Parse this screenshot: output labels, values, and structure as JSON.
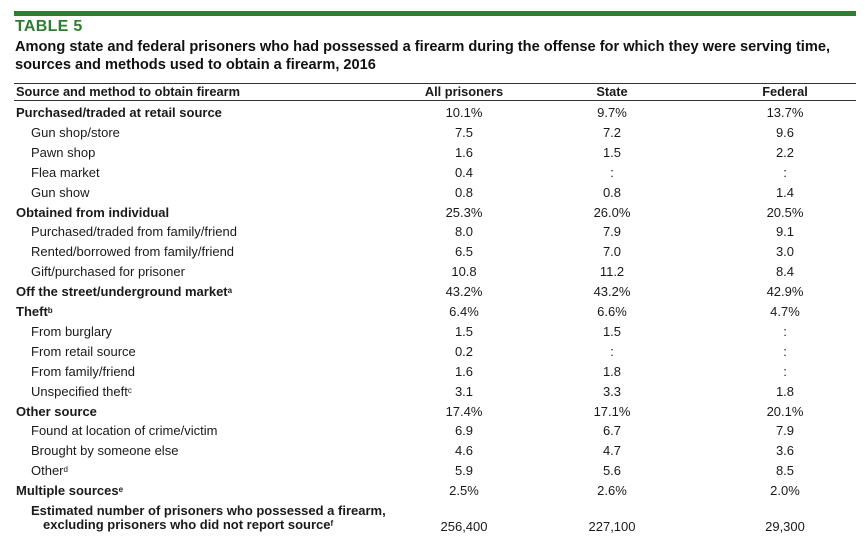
{
  "table_label": "TABLE 5",
  "title": "Among state and federal prisoners who had possessed a firearm during the offense for which they were serving time, sources and methods used to obtain a firearm, 2016",
  "header": {
    "label": "Source and method to obtain firearm",
    "col1": "All prisoners",
    "col2": "State",
    "col3": "Federal"
  },
  "colors": {
    "accent": "#2e7d32"
  },
  "rows": [
    {
      "label": "Purchased/traded at retail source",
      "sup": "",
      "level": 0,
      "all": "10.1%",
      "state": "9.7%",
      "federal": "13.7%"
    },
    {
      "label": "Gun shop/store",
      "sup": "",
      "level": 1,
      "all": "7.5",
      "state": "7.2",
      "federal": "9.6"
    },
    {
      "label": "Pawn shop",
      "sup": "",
      "level": 1,
      "all": "1.6",
      "state": "1.5",
      "federal": "2.2"
    },
    {
      "label": "Flea market",
      "sup": "",
      "level": 1,
      "all": "0.4",
      "state": ":",
      "federal": ":"
    },
    {
      "label": "Gun show",
      "sup": "",
      "level": 1,
      "all": "0.8",
      "state": "0.8",
      "federal": "1.4"
    },
    {
      "label": "Obtained from individual",
      "sup": "",
      "level": 0,
      "all": "25.3%",
      "state": "26.0%",
      "federal": "20.5%"
    },
    {
      "label": "Purchased/traded from family/friend",
      "sup": "",
      "level": 1,
      "all": "8.0",
      "state": "7.9",
      "federal": "9.1"
    },
    {
      "label": "Rented/borrowed from family/friend",
      "sup": "",
      "level": 1,
      "all": "6.5",
      "state": "7.0",
      "federal": "3.0"
    },
    {
      "label": "Gift/purchased for prisoner",
      "sup": "",
      "level": 1,
      "all": "10.8",
      "state": "11.2",
      "federal": "8.4"
    },
    {
      "label": "Off the street/underground market",
      "sup": "a",
      "level": 0,
      "all": "43.2%",
      "state": "43.2%",
      "federal": "42.9%"
    },
    {
      "label": "Theft",
      "sup": "b",
      "level": 0,
      "all": "6.4%",
      "state": "6.6%",
      "federal": "4.7%"
    },
    {
      "label": "From burglary",
      "sup": "",
      "level": 1,
      "all": "1.5",
      "state": "1.5",
      "federal": ":"
    },
    {
      "label": "From retail source",
      "sup": "",
      "level": 1,
      "all": "0.2",
      "state": ":",
      "federal": ":"
    },
    {
      "label": "From family/friend",
      "sup": "",
      "level": 1,
      "all": "1.6",
      "state": "1.8",
      "federal": ":"
    },
    {
      "label": "Unspecified theft",
      "sup": "c",
      "level": 1,
      "all": "3.1",
      "state": "3.3",
      "federal": "1.8"
    },
    {
      "label": "Other source",
      "sup": "",
      "level": 0,
      "all": "17.4%",
      "state": "17.1%",
      "federal": "20.1%"
    },
    {
      "label": "Found at location of crime/victim",
      "sup": "",
      "level": 1,
      "all": "6.9",
      "state": "6.7",
      "federal": "7.9"
    },
    {
      "label": "Brought by someone else",
      "sup": "",
      "level": 1,
      "all": "4.6",
      "state": "4.7",
      "federal": "3.6"
    },
    {
      "label": "Other",
      "sup": "d",
      "level": 1,
      "all": "5.9",
      "state": "5.6",
      "federal": "8.5"
    },
    {
      "label": "Multiple sources",
      "sup": "e",
      "level": 0,
      "all": "2.5%",
      "state": "2.6%",
      "federal": "2.0%"
    }
  ],
  "estimate": {
    "line1": "Estimated number of prisoners who possessed a firearm,",
    "line2": "excluding prisoners who did not report source",
    "sup": "f",
    "all": "256,400",
    "state": "227,100",
    "federal": "29,300"
  }
}
